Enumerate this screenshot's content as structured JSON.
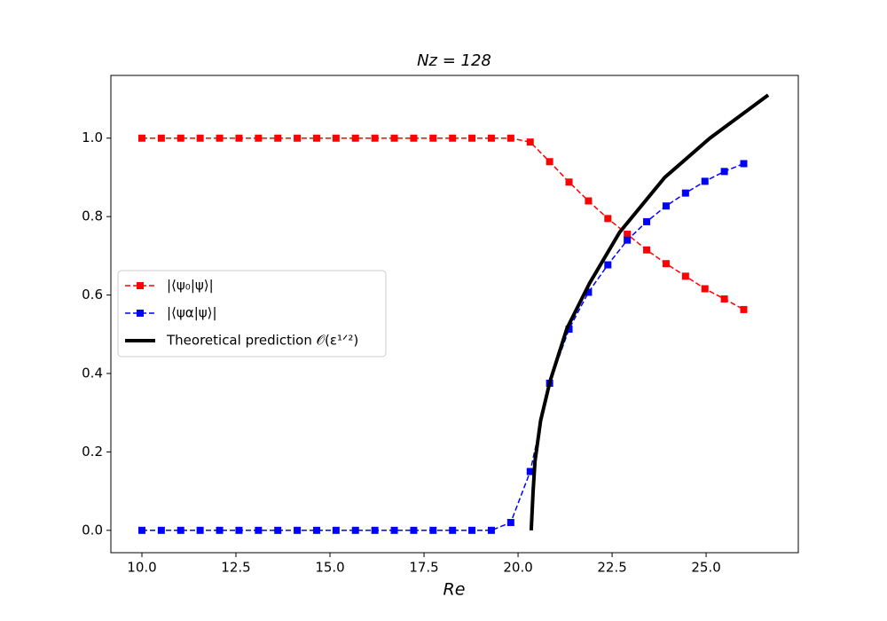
{
  "chart_data": {
    "type": "line",
    "title": "Nz = 128",
    "xlabel": "Re",
    "x": [
      10,
      10.516,
      11.032,
      11.548,
      12.065,
      12.581,
      13.097,
      13.613,
      14.129,
      14.645,
      15.161,
      15.677,
      16.194,
      16.71,
      17.226,
      17.742,
      18.258,
      18.774,
      19.29,
      19.806,
      20.323,
      20.839,
      21.355,
      21.871,
      22.387,
      22.903,
      23.419,
      23.935,
      24.452,
      24.968,
      25.484,
      26.0
    ],
    "series": [
      {
        "name": "|⟨ψ₀|ψ⟩|",
        "color": "#ff0000",
        "marker": "square",
        "linestyle": "dashed",
        "values": [
          1,
          1,
          1,
          1,
          1,
          1,
          1,
          1,
          1,
          1,
          1,
          1,
          1,
          1,
          1,
          1,
          1,
          1,
          1,
          1,
          0.99,
          0.94,
          0.888,
          0.84,
          0.795,
          0.755,
          0.715,
          0.68,
          0.648,
          0.616,
          0.59,
          0.563
        ]
      },
      {
        "name": "|⟨ψα|ψ⟩|",
        "color": "#0000ff",
        "marker": "square",
        "linestyle": "dashed",
        "values": [
          0,
          0,
          0,
          0,
          0,
          0,
          0,
          0,
          0,
          0,
          0,
          0,
          0,
          0,
          0,
          0,
          0,
          0,
          0,
          0.02,
          0.15,
          0.375,
          0.513,
          0.607,
          0.677,
          0.74,
          0.787,
          0.827,
          0.86,
          0.89,
          0.915,
          0.935
        ]
      },
      {
        "name": "Theoretical prediction 𝒪(ε¹ᐟ²)",
        "color": "#000000",
        "marker": "none",
        "linestyle": "solid",
        "linewidth": 4,
        "x": [
          20.35,
          20.4,
          20.45,
          20.6,
          20.85,
          21.3,
          21.9,
          22.7,
          23.9,
          25.1,
          26.65
        ],
        "values": [
          0,
          0.1,
          0.176,
          0.28,
          0.38,
          0.515,
          0.63,
          0.76,
          0.9,
          1.0,
          1.11
        ]
      }
    ],
    "xlim": [
      9.175,
      27.45
    ],
    "ylim": [
      -0.057,
      1.16
    ],
    "xticks": [
      {
        "value": 10,
        "label": "10.0"
      },
      12.5,
      {
        "value": 15,
        "label": "15.0"
      },
      17.5,
      {
        "value": 20,
        "label": "20.0"
      },
      22.5,
      {
        "value": 25,
        "label": "25.0"
      }
    ],
    "yticks": [
      {
        "value": 0,
        "label": "0.0"
      },
      0.2,
      0.4,
      0.6,
      0.8,
      {
        "value": 1,
        "label": "1.0"
      }
    ],
    "grid": false,
    "legend": "left"
  }
}
